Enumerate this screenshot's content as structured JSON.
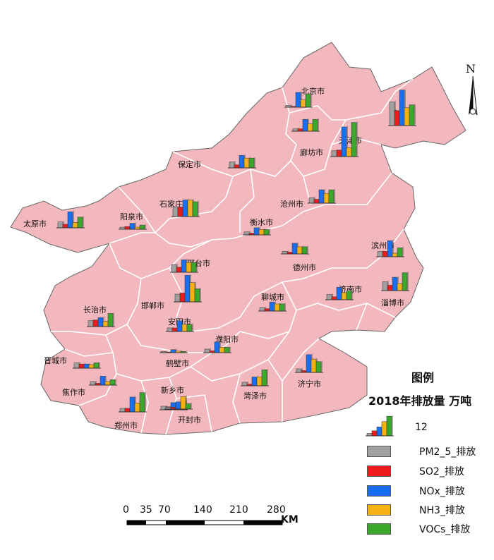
{
  "legend": {
    "title": "图例",
    "subtitle": "2018年排放量 万吨",
    "sample_value": "12",
    "items": [
      {
        "key": "pm25",
        "label": "PM2_5_排放",
        "color": "#a0a0a0"
      },
      {
        "key": "so2",
        "label": "SO2_排放",
        "color": "#ee1c1c"
      },
      {
        "key": "nox",
        "label": "NOx_排放",
        "color": "#1a6ef0"
      },
      {
        "key": "nh3",
        "label": "NH3_排放",
        "color": "#f5b014"
      },
      {
        "key": "voc",
        "label": "VOCs_排放",
        "color": "#3ba82c"
      }
    ]
  },
  "scale_bar": {
    "labels": [
      "0",
      "35",
      "70",
      "140",
      "210",
      "280"
    ],
    "unit": "KM"
  },
  "north_arrow": {
    "label": "N",
    "icon": "north-arrow-icon"
  },
  "map_fill_color": "#f2b8bd",
  "map_border_color": "#ffffff",
  "chart_data": {
    "type": "bar",
    "title": "2018年排放量 万吨",
    "series_names": [
      "PM2_5_排放",
      "SO2_排放",
      "NOx_排放",
      "NH3_排放",
      "VOCs_排放"
    ],
    "sample_value": 12,
    "cities": [
      {
        "name": "北京市",
        "values": [
          0.6,
          0.3,
          5,
          2.5,
          4.5
        ]
      },
      {
        "name": "唐山市",
        "values": [
          8,
          5,
          12,
          6,
          7
        ]
      },
      {
        "name": "天津市",
        "values": [
          2,
          2.2,
          10,
          3,
          11.5
        ]
      },
      {
        "name": "廊坊市",
        "values": [
          0.8,
          0.8,
          4,
          2.5,
          4
        ]
      },
      {
        "name": "保定市",
        "values": [
          2,
          1,
          4.2,
          3.3,
          3.3
        ]
      },
      {
        "name": "沧州市",
        "values": [
          1.8,
          1.3,
          4.5,
          3.3,
          4.5
        ]
      },
      {
        "name": "石家庄市",
        "values": [
          3.2,
          3.2,
          5.6,
          5.6,
          5
        ]
      },
      {
        "name": "太原市",
        "values": [
          2,
          1.2,
          5.4,
          1.8,
          3.6
        ]
      },
      {
        "name": "阳泉市",
        "values": [
          0.7,
          0.9,
          2,
          0.7,
          1.4
        ]
      },
      {
        "name": "衡水市",
        "values": [
          1,
          0.6,
          2.4,
          1.8,
          1.8
        ]
      },
      {
        "name": "邢台市",
        "values": [
          2.6,
          1.7,
          4.2,
          3.3,
          3.3
        ]
      },
      {
        "name": "德州市",
        "values": [
          0.9,
          0.6,
          3.6,
          2.4,
          2.4
        ]
      },
      {
        "name": "滨州市",
        "values": [
          1.8,
          1.8,
          5.4,
          1.2,
          3
        ]
      },
      {
        "name": "淄博市",
        "values": [
          3,
          1.8,
          4.5,
          2.4,
          6
        ]
      },
      {
        "name": "济南市",
        "values": [
          1.8,
          1,
          4.2,
          2.4,
          3
        ]
      },
      {
        "name": "邯郸市",
        "values": [
          2.6,
          3,
          9,
          6.5,
          4.4
        ]
      },
      {
        "name": "长治市",
        "values": [
          2,
          2.2,
          3,
          1.8,
          4.4
        ]
      },
      {
        "name": "聊城市",
        "values": [
          1.2,
          0.8,
          3,
          2.4,
          2.4
        ]
      },
      {
        "name": "安阳市",
        "values": [
          1.2,
          1.2,
          3.6,
          2.4,
          2.4
        ]
      },
      {
        "name": "濮阳市",
        "values": [
          1.2,
          0.6,
          3.6,
          1.8,
          1.8
        ]
      },
      {
        "name": "鹤壁市",
        "values": [
          0.4,
          0.2,
          1,
          0.5,
          0.4
        ]
      },
      {
        "name": "晋城市",
        "values": [
          1.8,
          1.4,
          1.4,
          1.2,
          1.8
        ]
      },
      {
        "name": "新乡市",
        "values": [
          1.2,
          1,
          2.4,
          2.4,
          3
        ]
      },
      {
        "name": "焦作市",
        "values": [
          1.2,
          0.6,
          3,
          1.2,
          1.8
        ]
      },
      {
        "name": "菏泽市",
        "values": [
          1.2,
          0.6,
          3,
          3,
          5.4
        ]
      },
      {
        "name": "济宁市",
        "values": [
          1.2,
          0.6,
          6,
          4.5,
          3.6
        ]
      },
      {
        "name": "郑州市",
        "values": [
          1.2,
          1.2,
          5,
          3,
          6.5
        ]
      },
      {
        "name": "开封市",
        "values": [
          0.6,
          0.6,
          2.4,
          4.2,
          1.8
        ]
      }
    ]
  }
}
